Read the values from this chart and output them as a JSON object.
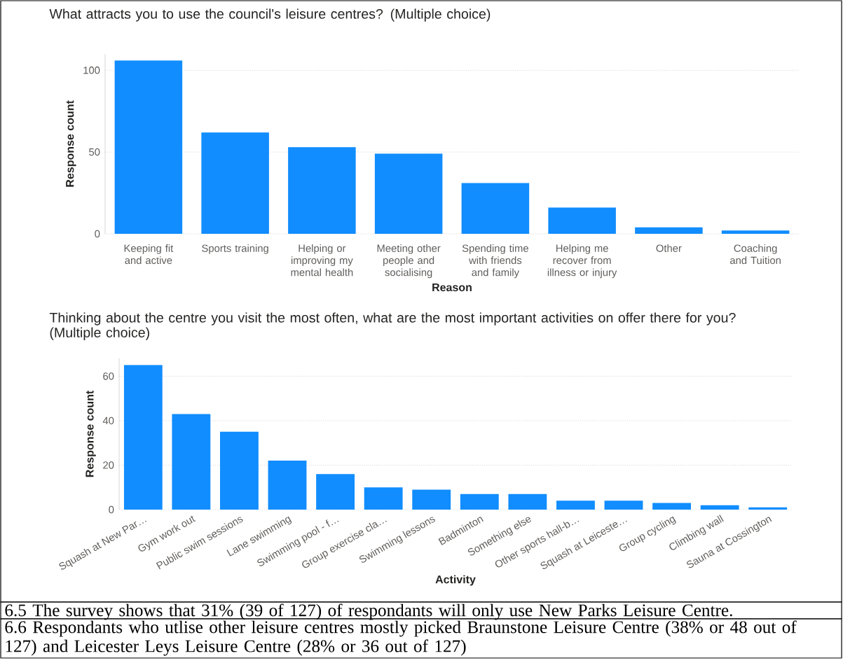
{
  "chart_data": [
    {
      "type": "bar",
      "title": "What attracts you to use the council's leisure centres? (Multiple choice)",
      "xlabel": "Reason",
      "ylabel": "Response count",
      "categories": [
        "Keeping fit and active",
        "Sports training",
        "Helping or improving my mental health",
        "Meeting other people and socialising",
        "Spending time with friends and family",
        "Helping me recover from illness or injury",
        "Other",
        "Coaching and Tuition"
      ],
      "values": [
        106,
        62,
        53,
        49,
        31,
        16,
        4,
        2
      ],
      "color": "#118dff",
      "ylim": [
        0,
        110
      ],
      "yticks": [
        0,
        50,
        100
      ],
      "grid": "y"
    },
    {
      "type": "bar",
      "title": "Thinking about the centre you visit the most often, what are the most important activities on offer there for you? (Multiple choice)",
      "xlabel": "Activity",
      "ylabel": "Response count",
      "categories": [
        "Squash at New Par…",
        "Gym work out",
        "Public swim sessions",
        "Lane swimming",
        "Swimming pool - f…",
        "Group exercise cla…",
        "Swimming lessons",
        "Badminton",
        "Something else",
        "Other sports hall-b…",
        "Squash at Leiceste…",
        "Group cycling",
        "Climbing wall",
        "Sauna at Cossington"
      ],
      "values": [
        65,
        43,
        35,
        22,
        16,
        10,
        9,
        7,
        7,
        4,
        4,
        3,
        2,
        1
      ],
      "color": "#118dff",
      "ylim": [
        0,
        68
      ],
      "yticks": [
        0,
        20,
        40,
        60
      ],
      "grid": "y",
      "annotations": [
        "6.5 The survey shows that 31% (39 of 127) of respondants will only use New Parks Leisure Centre.",
        "6.6 Respondants who utlise other leisure centres mostly picked Braunstone Leisure Centre (38% or 48 out of 127) and Leicester Leys Leisure Centre (28% or 36 out of 127)"
      ]
    }
  ]
}
